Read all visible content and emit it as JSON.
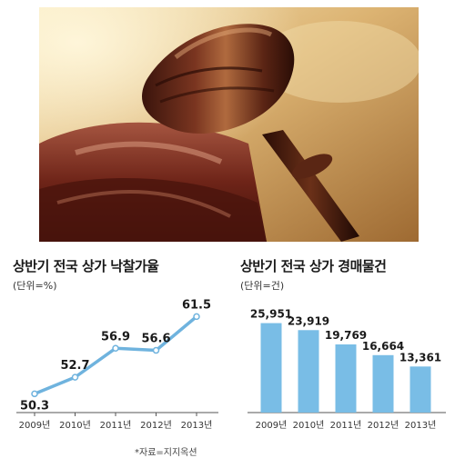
{
  "photo": {
    "subject": "wooden-gavel-icon"
  },
  "chart_data": [
    {
      "type": "line",
      "title": "상반기 전국 상가 낙찰가율",
      "unit": "(단위=%)",
      "categories": [
        "2009년",
        "2010년",
        "2011년",
        "2012년",
        "2013년"
      ],
      "values": [
        50.3,
        52.7,
        56.9,
        56.6,
        61.5
      ],
      "value_labels": [
        "50.3",
        "52.7",
        "56.9",
        "56.6",
        "61.5"
      ],
      "ylim": [
        48.5,
        63
      ],
      "grid": false,
      "color": "#6fb3de"
    },
    {
      "type": "bar",
      "title": "상반기 전국 상가 경매물건",
      "unit": "(단위=건)",
      "categories": [
        "2009년",
        "2010년",
        "2011년",
        "2012년",
        "2013년"
      ],
      "values": [
        25951,
        23919,
        19769,
        16664,
        13361
      ],
      "value_labels": [
        "25,951",
        "23,919",
        "19,769",
        "16,664",
        "13,361"
      ],
      "ylim": [
        0,
        29000
      ],
      "grid": false,
      "color": "#79bde6"
    }
  ],
  "source_note": "*자료=지지옥션"
}
